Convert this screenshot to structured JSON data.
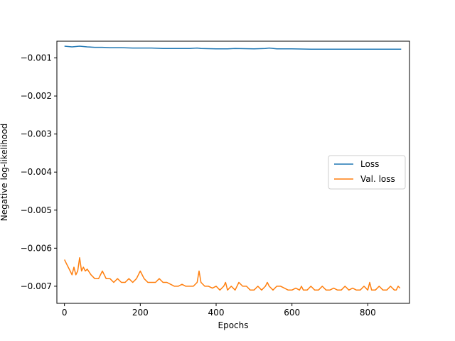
{
  "chart_data": {
    "type": "line",
    "title": "",
    "xlabel": "Epochs",
    "ylabel": "Negative log-likelihood",
    "xlim": [
      -20,
      910
    ],
    "ylim": [
      -0.00745,
      -0.00056
    ],
    "xticks": [
      0,
      200,
      400,
      600,
      800
    ],
    "xtick_labels": [
      "0",
      "200",
      "400",
      "600",
      "800"
    ],
    "yticks": [
      -0.007,
      -0.006,
      -0.005,
      -0.004,
      -0.003,
      -0.002,
      -0.001
    ],
    "ytick_labels": [
      "−0.007",
      "−0.006",
      "−0.005",
      "−0.004",
      "−0.003",
      "−0.002",
      "−0.001"
    ],
    "grid": false,
    "legend": {
      "placement": "center-right",
      "entries": [
        "Loss",
        "Val. loss"
      ]
    },
    "series": [
      {
        "name": "Loss",
        "color": "#1f77b4",
        "x": [
          0,
          10,
          20,
          30,
          40,
          50,
          60,
          80,
          100,
          120,
          150,
          180,
          200,
          230,
          260,
          300,
          330,
          350,
          360,
          400,
          430,
          450,
          500,
          530,
          540,
          560,
          600,
          650,
          700,
          750,
          800,
          850,
          888
        ],
        "y": [
          -0.00069,
          -0.0007,
          -0.00071,
          -0.0007,
          -0.00069,
          -0.0007,
          -0.00071,
          -0.00072,
          -0.00072,
          -0.00073,
          -0.00073,
          -0.00074,
          -0.00074,
          -0.00074,
          -0.00075,
          -0.00075,
          -0.00075,
          -0.00074,
          -0.00075,
          -0.00076,
          -0.00076,
          -0.00075,
          -0.00076,
          -0.00075,
          -0.00074,
          -0.00076,
          -0.00076,
          -0.00077,
          -0.00077,
          -0.00077,
          -0.00077,
          -0.00077,
          -0.00077
        ]
      },
      {
        "name": "Val. loss",
        "color": "#ff7f0e",
        "x": [
          0,
          5,
          10,
          15,
          20,
          25,
          30,
          35,
          40,
          45,
          50,
          55,
          60,
          70,
          80,
          90,
          100,
          110,
          120,
          130,
          140,
          150,
          160,
          170,
          180,
          190,
          200,
          210,
          220,
          230,
          240,
          250,
          260,
          270,
          280,
          290,
          300,
          310,
          320,
          330,
          340,
          350,
          355,
          360,
          370,
          380,
          390,
          400,
          410,
          420,
          425,
          430,
          440,
          450,
          460,
          470,
          480,
          490,
          500,
          510,
          520,
          530,
          535,
          540,
          550,
          560,
          570,
          580,
          590,
          600,
          610,
          620,
          625,
          630,
          640,
          650,
          660,
          670,
          680,
          690,
          700,
          710,
          720,
          730,
          740,
          750,
          760,
          770,
          780,
          790,
          800,
          805,
          810,
          820,
          830,
          840,
          850,
          860,
          870,
          875,
          880,
          885
        ],
        "y": [
          -0.0063,
          -0.0064,
          -0.0065,
          -0.0066,
          -0.0067,
          -0.0065,
          -0.0067,
          -0.0066,
          -0.00625,
          -0.0066,
          -0.0065,
          -0.0066,
          -0.00655,
          -0.0067,
          -0.0068,
          -0.0068,
          -0.0066,
          -0.0068,
          -0.0068,
          -0.0069,
          -0.0068,
          -0.0069,
          -0.0069,
          -0.0068,
          -0.0069,
          -0.0068,
          -0.0066,
          -0.0068,
          -0.0069,
          -0.0069,
          -0.0069,
          -0.0068,
          -0.0069,
          -0.0069,
          -0.00695,
          -0.007,
          -0.007,
          -0.00695,
          -0.007,
          -0.007,
          -0.007,
          -0.0069,
          -0.0066,
          -0.0069,
          -0.007,
          -0.007,
          -0.00705,
          -0.007,
          -0.0071,
          -0.007,
          -0.0069,
          -0.0071,
          -0.007,
          -0.0071,
          -0.0069,
          -0.007,
          -0.007,
          -0.0071,
          -0.0071,
          -0.007,
          -0.0071,
          -0.007,
          -0.0069,
          -0.007,
          -0.0071,
          -0.007,
          -0.007,
          -0.00705,
          -0.0071,
          -0.0071,
          -0.00705,
          -0.0071,
          -0.007,
          -0.0071,
          -0.0071,
          -0.007,
          -0.0071,
          -0.0071,
          -0.007,
          -0.0071,
          -0.0071,
          -0.00705,
          -0.0071,
          -0.0071,
          -0.007,
          -0.0071,
          -0.00705,
          -0.0071,
          -0.0071,
          -0.007,
          -0.0071,
          -0.0069,
          -0.0071,
          -0.0071,
          -0.007,
          -0.0071,
          -0.0071,
          -0.007,
          -0.0071,
          -0.0071,
          -0.007,
          -0.00705
        ]
      }
    ]
  }
}
